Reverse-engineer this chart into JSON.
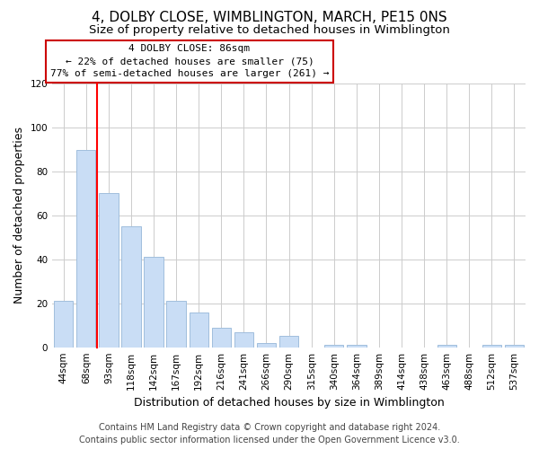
{
  "title": "4, DOLBY CLOSE, WIMBLINGTON, MARCH, PE15 0NS",
  "subtitle": "Size of property relative to detached houses in Wimblington",
  "xlabel": "Distribution of detached houses by size in Wimblington",
  "ylabel": "Number of detached properties",
  "categories": [
    "44sqm",
    "68sqm",
    "93sqm",
    "118sqm",
    "142sqm",
    "167sqm",
    "192sqm",
    "216sqm",
    "241sqm",
    "266sqm",
    "290sqm",
    "315sqm",
    "340sqm",
    "364sqm",
    "389sqm",
    "414sqm",
    "438sqm",
    "463sqm",
    "488sqm",
    "512sqm",
    "537sqm"
  ],
  "values": [
    21,
    90,
    70,
    55,
    41,
    21,
    16,
    9,
    7,
    2,
    5,
    0,
    1,
    1,
    0,
    0,
    0,
    1,
    0,
    1,
    1
  ],
  "bar_color": "#c9ddf5",
  "bar_edge_color": "#a0bedd",
  "red_line_x": 1.5,
  "ylim": [
    0,
    120
  ],
  "yticks": [
    0,
    20,
    40,
    60,
    80,
    100,
    120
  ],
  "annotation_title": "4 DOLBY CLOSE: 86sqm",
  "annotation_line1": "← 22% of detached houses are smaller (75)",
  "annotation_line2": "77% of semi-detached houses are larger (261) →",
  "annotation_box_facecolor": "#ffffff",
  "annotation_box_edgecolor": "#cc0000",
  "footer_line1": "Contains HM Land Registry data © Crown copyright and database right 2024.",
  "footer_line2": "Contains public sector information licensed under the Open Government Licence v3.0.",
  "background_color": "#ffffff",
  "grid_color": "#cccccc",
  "title_fontsize": 11,
  "subtitle_fontsize": 9.5,
  "axis_label_fontsize": 9,
  "tick_fontsize": 7.5,
  "annotation_fontsize": 8,
  "footer_fontsize": 7
}
